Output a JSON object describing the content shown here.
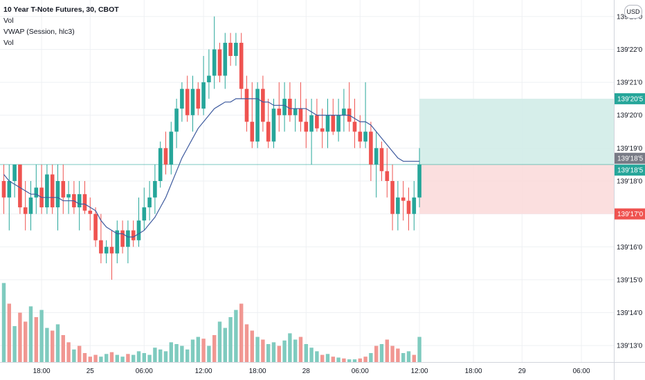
{
  "legend": {
    "title": "10 Year T-Note Futures, 30, CBOT",
    "vol1": "Vol",
    "vwap": "VWAP (Session, hlc3)",
    "vol2": "Vol"
  },
  "currency_button": "USD",
  "colors": {
    "up": "#26a69a",
    "down": "#ef5350",
    "vol_up": "#7fcbbf",
    "vol_down": "#f19792",
    "vwap": "#3d5a9e",
    "grid": "#eef0f3",
    "target_zone": "#d1ece8",
    "stop_zone": "#fbdcdc",
    "entry_label": "#787b86"
  },
  "chart_data": {
    "type": "candlestick",
    "symbol": "10 Year T-Note Futures",
    "interval": "30",
    "exchange": "CBOT",
    "y_unit": "32nds",
    "ylim": [
      139125,
      139235
    ],
    "y_ticks": [
      {
        "v": 139130,
        "label": "139'13'0"
      },
      {
        "v": 139140,
        "label": "139'14'0"
      },
      {
        "v": 139150,
        "label": "139'15'0"
      },
      {
        "v": 139160,
        "label": "139'16'0"
      },
      {
        "v": 139170,
        "label": "139'17'0"
      },
      {
        "v": 139180,
        "label": "139'18'0"
      },
      {
        "v": 139190,
        "label": "139'19'0"
      },
      {
        "v": 139200,
        "label": "139'20'0"
      },
      {
        "v": 139210,
        "label": "139'21'0"
      },
      {
        "v": 139220,
        "label": "139'22'0"
      },
      {
        "v": 139230,
        "label": "139'23'0"
      }
    ],
    "x_ticks": [
      {
        "bar": 7,
        "label": "18:00"
      },
      {
        "bar": 16,
        "label": "25"
      },
      {
        "bar": 26,
        "label": "06:00"
      },
      {
        "bar": 37,
        "label": "12:00"
      },
      {
        "bar": 47,
        "label": "18:00"
      },
      {
        "bar": 56,
        "label": "28"
      },
      {
        "bar": 66,
        "label": "06:00"
      },
      {
        "bar": 77,
        "label": "12:00"
      },
      {
        "bar": 87,
        "label": "18:00"
      },
      {
        "bar": 96,
        "label": "29"
      },
      {
        "bar": 107,
        "label": "06:00"
      }
    ],
    "price_labels": [
      {
        "value": 139205,
        "label": "139'20'5",
        "kind": "target"
      },
      {
        "value": 139185,
        "label": "139'18'5",
        "kind": "entry"
      },
      {
        "value": 139185,
        "label": "139'18'5",
        "kind": "last"
      },
      {
        "value": 139170,
        "label": "139'17'0",
        "kind": "stop"
      }
    ],
    "position": {
      "type": "long",
      "entry": 139185,
      "target": 139205,
      "stop": 139170,
      "start_bar": 77
    },
    "candles": [
      [
        139180,
        139185,
        139170,
        139175
      ],
      [
        139175,
        139185,
        139165,
        139180
      ],
      [
        139180,
        139185,
        139175,
        139185
      ],
      [
        139185,
        139185,
        139170,
        139172
      ],
      [
        139172,
        139180,
        139165,
        139170
      ],
      [
        139170,
        139180,
        139165,
        139175
      ],
      [
        139175,
        139185,
        139170,
        139178
      ],
      [
        139178,
        139185,
        139170,
        139172
      ],
      [
        139172,
        139185,
        139170,
        139182
      ],
      [
        139182,
        139185,
        139170,
        139172
      ],
      [
        139172,
        139185,
        139165,
        139180
      ],
      [
        139180,
        139185,
        139170,
        139175
      ],
      [
        139175,
        139180,
        139170,
        139176
      ],
      [
        139176,
        139180,
        139170,
        139172
      ],
      [
        139172,
        139180,
        139165,
        139176
      ],
      [
        139176,
        139180,
        139170,
        139171
      ],
      [
        139171,
        139175,
        139165,
        139170
      ],
      [
        139170,
        139172,
        139160,
        139162
      ],
      [
        139162,
        139170,
        139155,
        139158
      ],
      [
        139158,
        139162,
        139155,
        139160
      ],
      [
        139160,
        139165,
        139150,
        139158
      ],
      [
        139158,
        139168,
        139155,
        139165
      ],
      [
        139165,
        139168,
        139158,
        139160
      ],
      [
        139160,
        139168,
        139155,
        139165
      ],
      [
        139165,
        139168,
        139160,
        139162
      ],
      [
        139162,
        139175,
        139160,
        139168
      ],
      [
        139168,
        139178,
        139165,
        139172
      ],
      [
        139172,
        139180,
        139168,
        139175
      ],
      [
        139175,
        139185,
        139170,
        139180
      ],
      [
        139180,
        139192,
        139178,
        139190
      ],
      [
        139190,
        139195,
        139182,
        139185
      ],
      [
        139185,
        139198,
        139182,
        139195
      ],
      [
        139195,
        139205,
        139190,
        139202
      ],
      [
        139202,
        139210,
        139198,
        139208
      ],
      [
        139208,
        139212,
        139198,
        139200
      ],
      [
        139200,
        139212,
        139195,
        139208
      ],
      [
        139208,
        139210,
        139200,
        139202
      ],
      [
        139202,
        139218,
        139200,
        139210
      ],
      [
        139210,
        139220,
        139205,
        139212
      ],
      [
        139212,
        139230,
        139208,
        139220
      ],
      [
        139220,
        139222,
        139210,
        139212
      ],
      [
        139212,
        139225,
        139208,
        139222
      ],
      [
        139222,
        139225,
        139215,
        139218
      ],
      [
        139218,
        139225,
        139215,
        139222
      ],
      [
        139222,
        139225,
        139205,
        139208
      ],
      [
        139208,
        139212,
        139195,
        139198
      ],
      [
        139198,
        139210,
        139190,
        139192
      ],
      [
        139192,
        139210,
        139190,
        139208
      ],
      [
        139208,
        139212,
        139195,
        139198
      ],
      [
        139198,
        139205,
        139190,
        139192
      ],
      [
        139192,
        139205,
        139190,
        139202
      ],
      [
        139202,
        139210,
        139195,
        139200
      ],
      [
        139200,
        139210,
        139195,
        139205
      ],
      [
        139205,
        139210,
        139198,
        139200
      ],
      [
        139200,
        139205,
        139195,
        139202
      ],
      [
        139202,
        139210,
        139195,
        139198
      ],
      [
        139198,
        139205,
        139190,
        139195
      ],
      [
        139195,
        139205,
        139185,
        139200
      ],
      [
        139200,
        139205,
        139195,
        139196
      ],
      [
        139196,
        139202,
        139190,
        139195
      ],
      [
        139195,
        139205,
        139190,
        139200
      ],
      [
        139200,
        139205,
        139194,
        139195
      ],
      [
        139195,
        139205,
        139192,
        139200
      ],
      [
        139200,
        139208,
        139195,
        139202
      ],
      [
        139202,
        139210,
        139195,
        139198
      ],
      [
        139198,
        139205,
        139190,
        139195
      ],
      [
        139195,
        139200,
        139190,
        139192
      ],
      [
        139192,
        139210,
        139190,
        139195
      ],
      [
        139195,
        139198,
        139180,
        139185
      ],
      [
        139185,
        139195,
        139175,
        139190
      ],
      [
        139190,
        139192,
        139180,
        139183
      ],
      [
        139183,
        139190,
        139175,
        139180
      ],
      [
        139180,
        139185,
        139165,
        139170
      ],
      [
        139170,
        139180,
        139165,
        139175
      ],
      [
        139175,
        139180,
        139168,
        139174
      ],
      [
        139174,
        139178,
        139165,
        139170
      ],
      [
        139170,
        139180,
        139165,
        139175
      ],
      [
        139175,
        139190,
        139172,
        139185
      ]
    ],
    "vwap": [
      139182,
      139180,
      139179,
      139178,
      139177,
      139176,
      139176,
      139175,
      139175,
      139175,
      139175,
      139174,
      139174,
      139174,
      139173,
      139173,
      139172,
      139171,
      139168,
      139166,
      139165,
      139164,
      139164,
      139163,
      139163,
      139164,
      139165,
      139167,
      139169,
      139172,
      139175,
      139179,
      139183,
      139187,
      139190,
      139193,
      139196,
      139198,
      139200,
      139202,
      139203,
      139204,
      139204,
      139205,
      139205,
      139205,
      139205,
      139205,
      139204,
      139204,
      139203,
      139203,
      139203,
      139202,
      139202,
      139202,
      139202,
      139201,
      139200,
      139200,
      139200,
      139200,
      139200,
      139200,
      139200,
      139199,
      139198,
      139198,
      139197,
      139195,
      139193,
      139191,
      139189,
      139187,
      139186,
      139186,
      139186,
      139186
    ],
    "volume_max": 100,
    "volume": [
      88,
      65,
      40,
      55,
      45,
      62,
      50,
      58,
      38,
      35,
      42,
      30,
      22,
      14,
      18,
      10,
      6,
      8,
      6,
      9,
      11,
      8,
      6,
      9,
      8,
      12,
      10,
      8,
      16,
      14,
      12,
      22,
      20,
      18,
      14,
      25,
      28,
      26,
      18,
      30,
      45,
      38,
      50,
      58,
      65,
      42,
      35,
      28,
      25,
      20,
      22,
      18,
      24,
      32,
      25,
      28,
      20,
      16,
      12,
      8,
      9,
      6,
      5,
      4,
      3,
      3,
      4,
      6,
      10,
      18,
      20,
      25,
      18,
      15,
      10,
      12,
      8,
      28
    ],
    "volume_red": [
      false,
      true,
      false,
      true,
      true,
      false,
      true,
      false,
      false,
      true,
      false,
      true,
      true,
      false,
      true,
      true,
      true,
      true,
      false,
      false,
      true,
      false,
      false,
      true,
      false,
      false,
      false,
      false,
      false,
      false,
      false,
      false,
      false,
      false,
      false,
      false,
      false,
      true,
      false,
      true,
      false,
      false,
      false,
      false,
      true,
      true,
      true,
      false,
      true,
      false,
      false,
      true,
      false,
      false,
      false,
      true,
      false,
      false,
      false,
      true,
      false,
      true,
      false,
      true,
      false,
      false,
      true,
      true,
      false,
      true,
      false,
      true,
      true,
      true,
      false,
      false,
      true,
      false
    ]
  }
}
